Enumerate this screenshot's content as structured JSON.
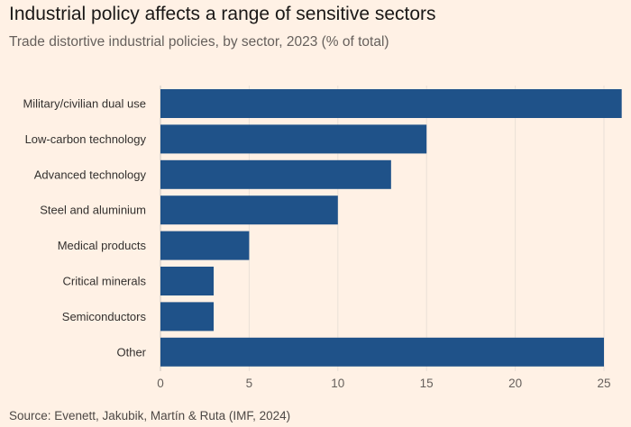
{
  "chart_data": {
    "type": "bar",
    "orientation": "horizontal",
    "title": "Industrial policy affects a range of sensitive sectors",
    "subtitle": "Trade distortive industrial policies, by sector, 2023 (% of total)",
    "source": "Source: Evenett, Jakubik, Martín & Ruta (IMF, 2024)",
    "categories": [
      "Military/civilian dual use",
      "Low-carbon technology",
      "Advanced technology",
      "Steel and aluminium",
      "Medical products",
      "Critical minerals",
      "Semiconductors",
      "Other"
    ],
    "values": [
      26,
      15,
      13,
      10,
      5,
      3,
      3,
      25
    ],
    "xlim": [
      0,
      26
    ],
    "xticks": [
      0,
      5,
      10,
      15,
      20,
      25
    ],
    "grid": true,
    "bar_color": "#1F5289",
    "background": "#FFF1E5"
  }
}
